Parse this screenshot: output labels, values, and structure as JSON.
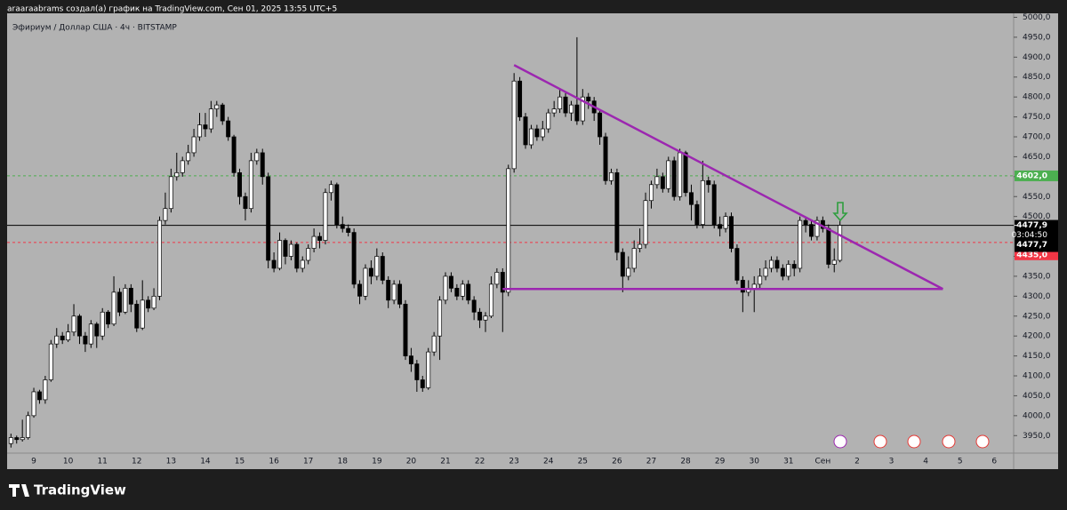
{
  "header": "araaraabrams создал(а) график на TradingView.com, Сен 01, 2025 13:55 UTC+5",
  "footer": "TradingView",
  "chart_data": {
    "type": "candlestick",
    "title": "Эфириум / Доллар США · 4ч · BITSTAMP",
    "up_color": "#ffffff",
    "down_color": "#000000",
    "wick_color": "#000000",
    "ylim": [
      3906,
      5010
    ],
    "yticks": [
      {
        "value": 3950,
        "label": "3950,0"
      },
      {
        "value": 4000,
        "label": "4000,0"
      },
      {
        "value": 4050,
        "label": "4050,0"
      },
      {
        "value": 4100,
        "label": "4100,0"
      },
      {
        "value": 4150,
        "label": "4150,0"
      },
      {
        "value": 4200,
        "label": "4200,0"
      },
      {
        "value": 4250,
        "label": "4250,0"
      },
      {
        "value": 4300,
        "label": "4300,0"
      },
      {
        "value": 4350,
        "label": "4350,0"
      },
      {
        "value": 4400,
        "label": "4400,0"
      },
      {
        "value": 4450,
        "label": "4450,0"
      },
      {
        "value": 4500,
        "label": "4500,0"
      },
      {
        "value": 4550,
        "label": "4550,0"
      },
      {
        "value": 4600,
        "label": "4600,0"
      },
      {
        "value": 4650,
        "label": "4650,0"
      },
      {
        "value": 4700,
        "label": "4700,0"
      },
      {
        "value": 4750,
        "label": "4750,0"
      },
      {
        "value": 4800,
        "label": "4800,0"
      },
      {
        "value": 4850,
        "label": "4850,0"
      },
      {
        "value": 4900,
        "label": "4900,0"
      },
      {
        "value": 4950,
        "label": "4950,0"
      },
      {
        "value": 5000,
        "label": "5000,0"
      }
    ],
    "grid": false,
    "categories": [
      null,
      null,
      null,
      null,
      "9",
      null,
      null,
      null,
      null,
      null,
      "10",
      null,
      null,
      null,
      null,
      null,
      "11",
      null,
      null,
      null,
      null,
      null,
      "12",
      null,
      null,
      null,
      null,
      null,
      "13",
      null,
      null,
      null,
      null,
      null,
      "14",
      null,
      null,
      null,
      null,
      null,
      "15",
      null,
      null,
      null,
      null,
      null,
      "16",
      null,
      null,
      null,
      null,
      null,
      "17",
      null,
      null,
      null,
      null,
      null,
      "18",
      null,
      null,
      null,
      null,
      null,
      "19",
      null,
      null,
      null,
      null,
      null,
      "20",
      null,
      null,
      null,
      null,
      null,
      "21",
      null,
      null,
      null,
      null,
      null,
      "22",
      null,
      null,
      null,
      null,
      null,
      "23",
      null,
      null,
      null,
      null,
      null,
      "24",
      null,
      null,
      null,
      null,
      null,
      "25",
      null,
      null,
      null,
      null,
      null,
      "26",
      null,
      null,
      null,
      null,
      null,
      "27",
      null,
      null,
      null,
      null,
      null,
      "28",
      null,
      null,
      null,
      null,
      null,
      "29",
      null,
      null,
      null,
      null,
      null,
      "30",
      null,
      null,
      null,
      null,
      null,
      "31",
      null,
      null,
      null,
      null,
      null,
      "Сен",
      null,
      null,
      null,
      null,
      null,
      "2",
      null,
      null,
      null,
      null,
      null,
      "3",
      null,
      null,
      null,
      null,
      null,
      "4",
      null,
      null,
      null,
      null,
      null,
      "5",
      null,
      null,
      null,
      null,
      null,
      "6",
      null,
      null,
      null
    ],
    "open": [
      3930,
      3945,
      3940,
      3945,
      4000,
      4060,
      4040,
      4090,
      4180,
      4200,
      4190,
      4210,
      4250,
      4200,
      4180,
      4230,
      4200,
      4260,
      4230,
      4310,
      4260,
      4320,
      4280,
      4220,
      4290,
      4270,
      4300,
      4490,
      4520,
      4600,
      4610,
      4640,
      4660,
      4700,
      4730,
      4720,
      4770,
      4780,
      4740,
      4700,
      4610,
      4550,
      4520,
      4640,
      4660,
      4600,
      4390,
      4370,
      4440,
      4400,
      4430,
      4370,
      4390,
      4420,
      4450,
      4440,
      4560,
      4580,
      4480,
      4470,
      4460,
      4330,
      4300,
      4370,
      4350,
      4400,
      4340,
      4290,
      4330,
      4280,
      4150,
      4130,
      4090,
      4070,
      4160,
      4200,
      4290,
      4350,
      4320,
      4300,
      4330,
      4290,
      4260,
      4240,
      4250,
      4330,
      4360,
      4310,
      4620,
      4840,
      4750,
      4680,
      4720,
      4700,
      4720,
      4760,
      4770,
      4800,
      4760,
      4780,
      4740,
      4800,
      4790,
      4760,
      4700,
      4590,
      4610,
      4410,
      4350,
      4370,
      4420,
      4430,
      4540,
      4580,
      4600,
      4570,
      4640,
      4550,
      4660,
      4560,
      4530,
      4480,
      4590,
      4580,
      4480,
      4470,
      4500,
      4420,
      4340,
      4310,
      4320,
      4330,
      4350,
      4370,
      4390,
      4370,
      4350,
      4380,
      4370,
      4490,
      4480,
      4450,
      4490,
      4470,
      4380,
      4390,
      null,
      null,
      null,
      null,
      null,
      null,
      null,
      null,
      null,
      null,
      null,
      null,
      null,
      null,
      null,
      null,
      null,
      null,
      null,
      null,
      null,
      null,
      null,
      null,
      null,
      null,
      null,
      null,
      null,
      null
    ],
    "high": [
      3955,
      3950,
      3990,
      4010,
      4070,
      4065,
      4100,
      4190,
      4220,
      4210,
      4230,
      4280,
      4255,
      4210,
      4240,
      4235,
      4270,
      4265,
      4350,
      4320,
      4330,
      4330,
      4290,
      4340,
      4300,
      4320,
      4500,
      4560,
      4620,
      4660,
      4650,
      4680,
      4720,
      4760,
      4760,
      4790,
      4790,
      4785,
      4750,
      4705,
      4620,
      4560,
      4660,
      4670,
      4670,
      4610,
      4410,
      4460,
      4445,
      4440,
      4435,
      4400,
      4430,
      4470,
      4460,
      4570,
      4590,
      4585,
      4500,
      4480,
      4470,
      4340,
      4380,
      4390,
      4420,
      4410,
      4350,
      4340,
      4340,
      4290,
      4170,
      4140,
      4100,
      4170,
      4210,
      4300,
      4360,
      4360,
      4330,
      4340,
      4340,
      4300,
      4270,
      4260,
      4350,
      4370,
      4370,
      4630,
      4860,
      4850,
      4760,
      4730,
      4730,
      4740,
      4770,
      4790,
      4820,
      4810,
      4790,
      4950,
      4820,
      4810,
      4800,
      4770,
      4710,
      4620,
      4620,
      4420,
      4400,
      4440,
      4470,
      4560,
      4590,
      4620,
      4610,
      4650,
      4650,
      4670,
      4665,
      4580,
      4540,
      4640,
      4600,
      4590,
      4500,
      4510,
      4510,
      4430,
      4350,
      4340,
      4350,
      4370,
      4390,
      4400,
      4400,
      4380,
      4390,
      4390,
      4500,
      4500,
      4490,
      4500,
      4500,
      4480,
      4420,
      4490,
      null,
      null,
      null,
      null,
      null,
      null,
      null,
      null,
      null,
      null,
      null,
      null,
      null,
      null,
      null,
      null,
      null,
      null,
      null,
      null,
      null,
      null,
      null,
      null,
      null,
      null,
      null,
      null,
      null,
      null
    ],
    "low": [
      3920,
      3930,
      3935,
      3940,
      3995,
      4030,
      4030,
      4085,
      4170,
      4180,
      4185,
      4200,
      4180,
      4160,
      4170,
      4170,
      4190,
      4220,
      4225,
      4250,
      4255,
      4260,
      4210,
      4215,
      4260,
      4265,
      4290,
      4480,
      4510,
      4590,
      4600,
      4630,
      4650,
      4690,
      4700,
      4710,
      4750,
      4730,
      4690,
      4600,
      4530,
      4490,
      4510,
      4630,
      4580,
      4370,
      4360,
      4365,
      4380,
      4390,
      4360,
      4360,
      4380,
      4410,
      4420,
      4430,
      4540,
      4470,
      4460,
      4450,
      4320,
      4280,
      4290,
      4330,
      4340,
      4330,
      4270,
      4280,
      4270,
      4140,
      4110,
      4060,
      4060,
      4065,
      4150,
      4140,
      4280,
      4310,
      4290,
      4290,
      4280,
      4240,
      4220,
      4210,
      4245,
      4320,
      4210,
      4300,
      4610,
      4740,
      4670,
      4670,
      4690,
      4690,
      4710,
      4750,
      4760,
      4750,
      4740,
      4730,
      4730,
      4770,
      4740,
      4680,
      4580,
      4580,
      4390,
      4310,
      4340,
      4360,
      4410,
      4420,
      4520,
      4570,
      4560,
      4560,
      4540,
      4540,
      4550,
      4490,
      4470,
      4470,
      4560,
      4470,
      4450,
      4460,
      4410,
      4330,
      4260,
      4300,
      4260,
      4320,
      4340,
      4360,
      4360,
      4340,
      4340,
      4350,
      4360,
      4460,
      4440,
      4440,
      4460,
      4370,
      4360,
      4385,
      null,
      null,
      null,
      null,
      null,
      null,
      null,
      null,
      null,
      null,
      null,
      null,
      null,
      null,
      null,
      null,
      null,
      null,
      null,
      null,
      null,
      null,
      null,
      null,
      null,
      null,
      null,
      null,
      null,
      null
    ],
    "close": [
      3945,
      3940,
      3945,
      4000,
      4060,
      4040,
      4090,
      4180,
      4200,
      4190,
      4210,
      4250,
      4200,
      4180,
      4230,
      4200,
      4260,
      4230,
      4310,
      4260,
      4320,
      4280,
      4220,
      4290,
      4270,
      4300,
      4490,
      4520,
      4600,
      4610,
      4640,
      4660,
      4700,
      4730,
      4720,
      4770,
      4780,
      4740,
      4700,
      4610,
      4550,
      4520,
      4640,
      4660,
      4600,
      4390,
      4370,
      4440,
      4400,
      4430,
      4370,
      4390,
      4420,
      4450,
      4440,
      4560,
      4580,
      4480,
      4470,
      4460,
      4330,
      4300,
      4370,
      4350,
      4400,
      4340,
      4290,
      4330,
      4280,
      4150,
      4130,
      4090,
      4070,
      4160,
      4200,
      4290,
      4350,
      4320,
      4300,
      4330,
      4290,
      4260,
      4240,
      4250,
      4330,
      4360,
      4310,
      4620,
      4840,
      4750,
      4680,
      4720,
      4700,
      4720,
      4760,
      4770,
      4800,
      4760,
      4780,
      4740,
      4800,
      4790,
      4760,
      4700,
      4590,
      4610,
      4410,
      4350,
      4370,
      4420,
      4430,
      4540,
      4580,
      4600,
      4570,
      4640,
      4550,
      4660,
      4560,
      4530,
      4480,
      4590,
      4580,
      4480,
      4470,
      4500,
      4420,
      4340,
      4310,
      4320,
      4330,
      4350,
      4370,
      4390,
      4370,
      4350,
      4380,
      4370,
      4490,
      4480,
      4450,
      4490,
      4470,
      4380,
      4390,
      4477.9,
      null,
      null,
      null,
      null,
      null,
      null,
      null,
      null,
      null,
      null,
      null,
      null,
      null,
      null,
      null,
      null,
      null,
      null,
      null,
      null,
      null,
      null,
      null,
      null,
      null,
      null,
      null,
      null,
      null,
      null
    ],
    "price_lines": [
      {
        "value": 4602,
        "label": "4602,0",
        "color": "#4caf50",
        "dashed": true
      },
      {
        "value": 4435,
        "label": "4435,0",
        "color": "#f23645",
        "dashed": true
      },
      {
        "value": 4477.9,
        "label": "4477,9",
        "color": "#000000",
        "dashed": false
      }
    ],
    "countdown": "03:04:50",
    "bid": {
      "value": 4477.7,
      "label": "4477,7"
    },
    "drawings": [
      {
        "x": [
          88,
          163
        ],
        "y": [
          4880,
          4318
        ],
        "color": "#9c27b0"
      },
      {
        "x": [
          86,
          163
        ],
        "y": [
          4318,
          4318
        ],
        "color": "#9c27b0"
      }
    ]
  }
}
